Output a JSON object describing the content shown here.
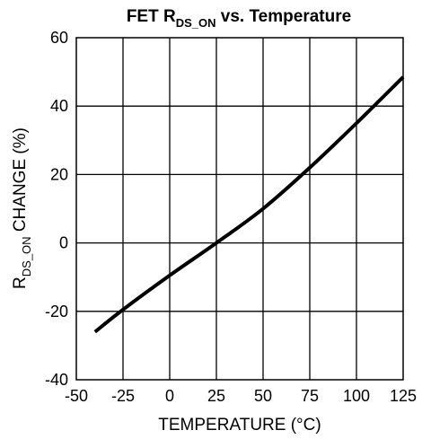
{
  "chart_data": {
    "type": "line",
    "title": {
      "prefix": "FET R",
      "subscript": "DS_ON",
      "suffix": " vs. Temperature"
    },
    "ylabel": {
      "prefix": "R",
      "subscript": "DS_ON",
      "suffix": " CHANGE (%)"
    },
    "xlabel": "TEMPERATURE (°C)",
    "xlim": [
      -50,
      125
    ],
    "ylim": [
      -40,
      60
    ],
    "x_ticks": [
      -50,
      -25,
      0,
      25,
      50,
      75,
      100,
      125
    ],
    "y_ticks": [
      -40,
      -20,
      0,
      20,
      40,
      60
    ],
    "grid": true,
    "series": [
      {
        "x": [
          -40,
          -25,
          0,
          25,
          50,
          75,
          100,
          125
        ],
        "y": [
          -26,
          -19.5,
          -9.5,
          0,
          10,
          22,
          35,
          48.5
        ]
      }
    ],
    "colors": {
      "line": "#000000",
      "grid": "#000000",
      "background": "#ffffff"
    }
  }
}
